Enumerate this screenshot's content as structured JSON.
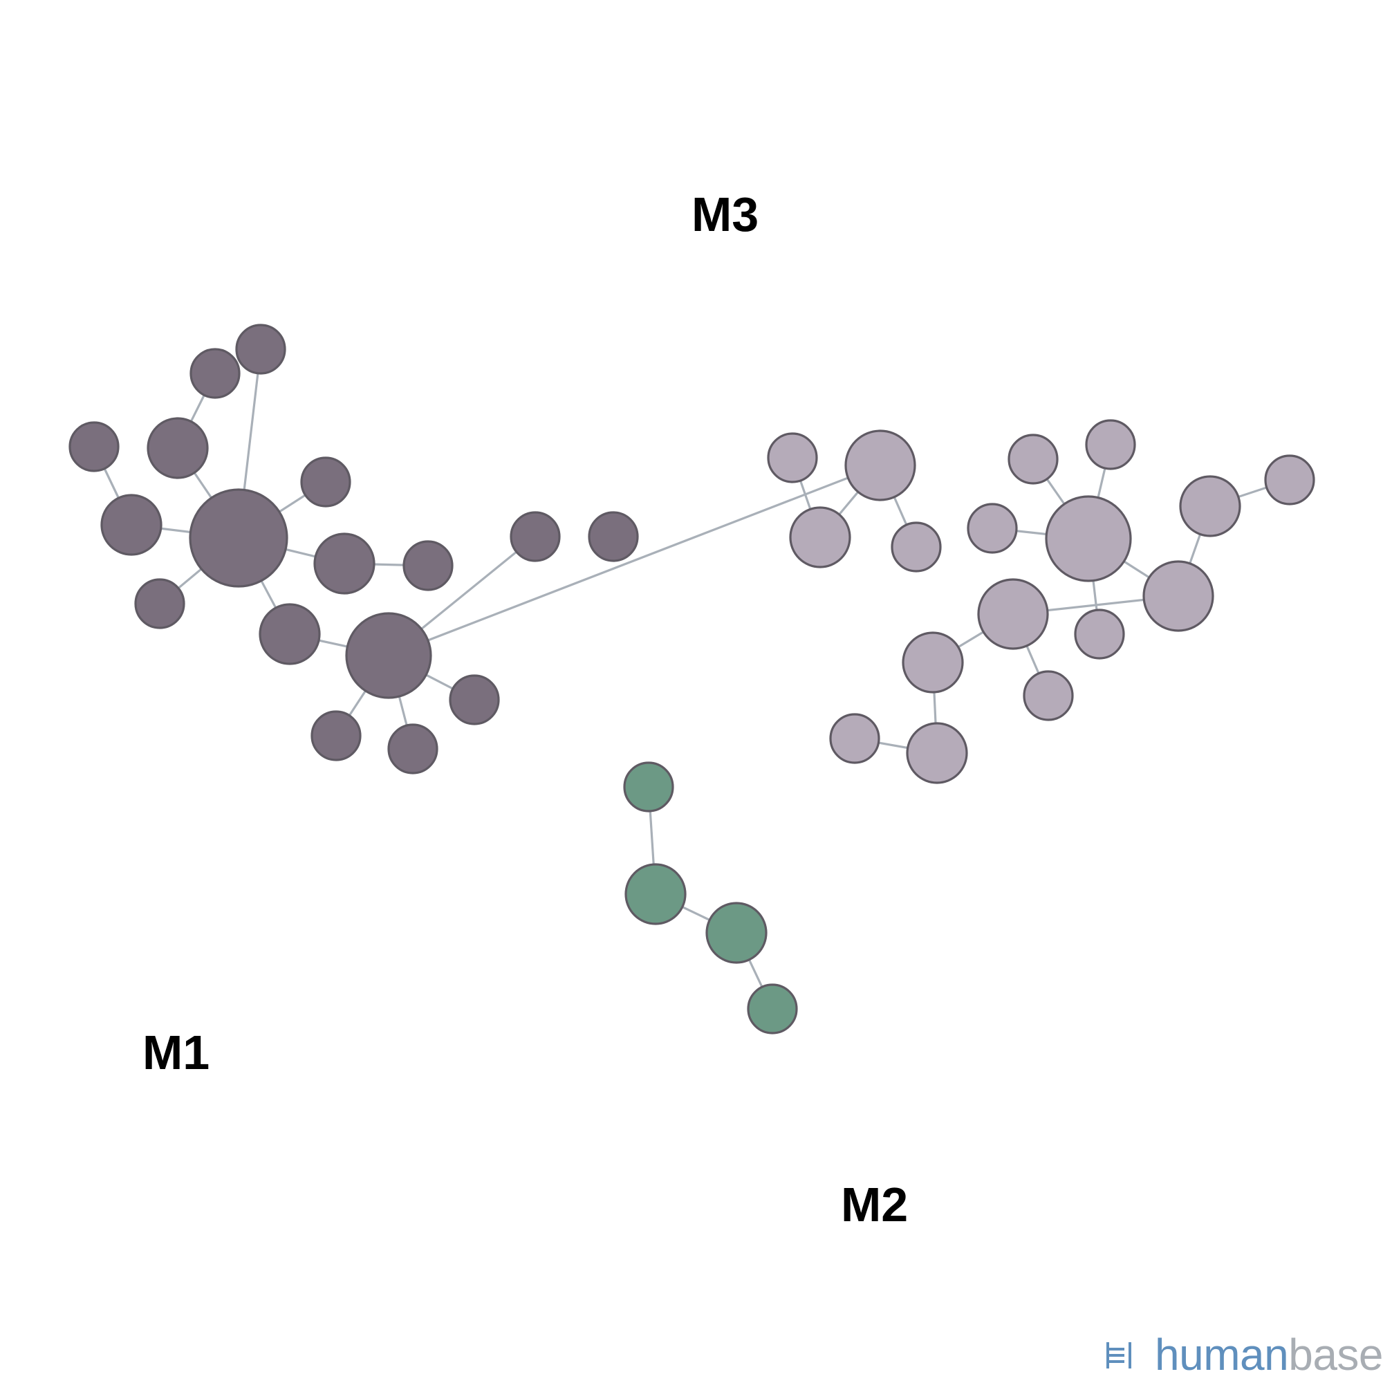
{
  "colors": {
    "M1": "#7a6f7d",
    "M2": "#6c9985",
    "M3": "#b5abb9",
    "edge": "#a9b0b8",
    "node_stroke": "#5f5a63",
    "logo_primary": "#5f8fbd",
    "logo_secondary": "#a8adb3"
  },
  "modules": [
    {
      "id": "M1",
      "label": "M1"
    },
    {
      "id": "M2",
      "label": "M2"
    },
    {
      "id": "M3",
      "label": "M3"
    }
  ],
  "nodes": [
    {
      "id": "a1",
      "module": "M1"
    },
    {
      "id": "a2",
      "module": "M1"
    },
    {
      "id": "a3",
      "module": "M1"
    },
    {
      "id": "a4",
      "module": "M1"
    },
    {
      "id": "a5",
      "module": "M1"
    },
    {
      "id": "a6",
      "module": "M1"
    },
    {
      "id": "a7",
      "module": "M1"
    },
    {
      "id": "a8",
      "module": "M1"
    },
    {
      "id": "a9",
      "module": "M1"
    },
    {
      "id": "a10",
      "module": "M1"
    },
    {
      "id": "a11",
      "module": "M1"
    },
    {
      "id": "a12",
      "module": "M1"
    },
    {
      "id": "a13",
      "module": "M1"
    },
    {
      "id": "a14",
      "module": "M1"
    },
    {
      "id": "a15",
      "module": "M1"
    },
    {
      "id": "a16",
      "module": "M1"
    },
    {
      "id": "a17",
      "module": "M1"
    },
    {
      "id": "a18",
      "module": "M1"
    },
    {
      "id": "b1",
      "module": "M3"
    },
    {
      "id": "b2",
      "module": "M3"
    },
    {
      "id": "b3",
      "module": "M3"
    },
    {
      "id": "b4",
      "module": "M3"
    },
    {
      "id": "c1",
      "module": "M3"
    },
    {
      "id": "c2",
      "module": "M3"
    },
    {
      "id": "c3",
      "module": "M3"
    },
    {
      "id": "c4",
      "module": "M3"
    },
    {
      "id": "c5",
      "module": "M3"
    },
    {
      "id": "c6",
      "module": "M3"
    },
    {
      "id": "c7",
      "module": "M3"
    },
    {
      "id": "c8",
      "module": "M3"
    },
    {
      "id": "c9",
      "module": "M3"
    },
    {
      "id": "c10",
      "module": "M3"
    },
    {
      "id": "c11",
      "module": "M3"
    },
    {
      "id": "c12",
      "module": "M3"
    },
    {
      "id": "c13",
      "module": "M3"
    },
    {
      "id": "c14",
      "module": "M3"
    },
    {
      "id": "g1",
      "module": "M2"
    },
    {
      "id": "g2",
      "module": "M2"
    },
    {
      "id": "g3",
      "module": "M2"
    },
    {
      "id": "g4",
      "module": "M2"
    }
  ],
  "edges": [
    [
      "a1",
      "a2"
    ],
    [
      "a2",
      "a3"
    ],
    [
      "a4",
      "a5"
    ],
    [
      "a5",
      "a3"
    ],
    [
      "a3",
      "a6"
    ],
    [
      "a3",
      "a7"
    ],
    [
      "a3",
      "a8"
    ],
    [
      "a8",
      "a9"
    ],
    [
      "a3",
      "a10"
    ],
    [
      "a3",
      "a11"
    ],
    [
      "a11",
      "a12"
    ],
    [
      "a12",
      "a13"
    ],
    [
      "a12",
      "a14"
    ],
    [
      "a12",
      "a15"
    ],
    [
      "a12",
      "a16"
    ],
    [
      "a17",
      "a18"
    ],
    [
      "a12",
      "b2"
    ],
    [
      "b1",
      "b3"
    ],
    [
      "b2",
      "b3"
    ],
    [
      "b2",
      "b4"
    ],
    [
      "c1",
      "c4"
    ],
    [
      "c2",
      "c4"
    ],
    [
      "c3",
      "c4"
    ],
    [
      "c5",
      "c6"
    ],
    [
      "c6",
      "c7"
    ],
    [
      "c4",
      "c7"
    ],
    [
      "c4",
      "c9"
    ],
    [
      "c8",
      "c7"
    ],
    [
      "c8",
      "c10"
    ],
    [
      "c8",
      "c11"
    ],
    [
      "c10",
      "c12"
    ],
    [
      "c12",
      "c13"
    ],
    [
      "g1",
      "g2"
    ],
    [
      "g2",
      "g3"
    ],
    [
      "g3",
      "g4"
    ]
  ],
  "logo": {
    "part1": "human",
    "part2": "base"
  }
}
